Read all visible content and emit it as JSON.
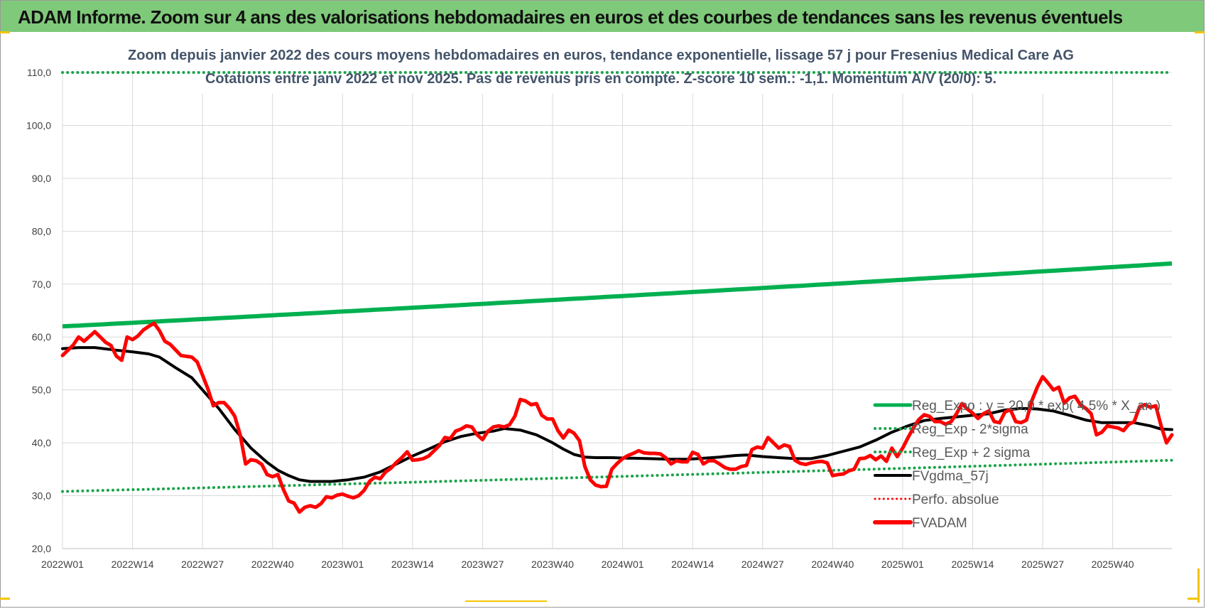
{
  "header": {
    "title": "ADAM Informe. Zoom sur 4 ans des valorisations hebdomadaires en euros et des courbes de tendances sans les revenus éventuels"
  },
  "colors": {
    "header_bg": "#7fc97a",
    "reg_expo": "#00b050",
    "reg_band": "#1aa34a",
    "fvgdma": "#000000",
    "perfo": "#ff0000",
    "fvadam": "#ff0000",
    "grid": "#d9d9d9",
    "title_text": "#44546a"
  },
  "chart_data": {
    "type": "line",
    "title": "Zoom depuis janvier 2022 des cours moyens hebdomadaires en euros, tendance exponentielle, lissage 57 j pour Fresenius Medical Care AG",
    "subtitle": "Cotations entre janv 2022 et nov 2025. Pas de revenus pris en compte. Z-score 10 sem.: -1,1. Momentum A/V (20/0): 5.",
    "ylim": [
      20,
      110
    ],
    "yticks": [
      "20,0",
      "30,0",
      "40,0",
      "50,0",
      "60,0",
      "70,0",
      "80,0",
      "90,0",
      "100,0",
      "110,0"
    ],
    "ytick_values": [
      20,
      30,
      40,
      50,
      60,
      70,
      80,
      90,
      100,
      110
    ],
    "xticks": [
      "2022W01",
      "2022W14",
      "2022W27",
      "2022W40",
      "2023W01",
      "2023W14",
      "2023W27",
      "2023W40",
      "2024W01",
      "2024W14",
      "2024W27",
      "2024W40",
      "2025W01",
      "2025W14",
      "2025W27",
      "2025W40"
    ],
    "xtick_index": [
      0,
      13,
      26,
      39,
      52,
      65,
      78,
      91,
      104,
      117,
      130,
      143,
      156,
      169,
      182,
      195
    ],
    "x_count": 206,
    "grid": true,
    "legend_position": "bottom-right",
    "series": [
      {
        "name": "Reg_Expo : y = 20,0 * exp( 4,5% * X_an )",
        "style": "solid-thick",
        "start": 62.0,
        "end": 73.9
      },
      {
        "name": "Reg_Exp - 2*sigma",
        "style": "dotted",
        "start": 30.8,
        "end": 36.7
      },
      {
        "name": "Reg_Exp + 2 sigma",
        "style": "dotted",
        "start": 110.0,
        "end": 110.0
      },
      {
        "name": "FVgdma_57j",
        "style": "solid",
        "points": [
          [
            0,
            57.8
          ],
          [
            3,
            58.0
          ],
          [
            6,
            58.0
          ],
          [
            10,
            57.5
          ],
          [
            13,
            57.2
          ],
          [
            16,
            56.8
          ],
          [
            18,
            56.2
          ],
          [
            21,
            54.2
          ],
          [
            24,
            52.3
          ],
          [
            26,
            50.0
          ],
          [
            29,
            46.5
          ],
          [
            32,
            42.5
          ],
          [
            35,
            39.0
          ],
          [
            38,
            36.3
          ],
          [
            40,
            34.8
          ],
          [
            42,
            33.8
          ],
          [
            44,
            33.0
          ],
          [
            46,
            32.7
          ],
          [
            50,
            32.7
          ],
          [
            53,
            33.0
          ],
          [
            56,
            33.5
          ],
          [
            59,
            34.5
          ],
          [
            62,
            36.0
          ],
          [
            65,
            37.5
          ],
          [
            68,
            38.8
          ],
          [
            71,
            40.2
          ],
          [
            74,
            41.2
          ],
          [
            77,
            41.8
          ],
          [
            80,
            42.2
          ],
          [
            82,
            42.7
          ],
          [
            85,
            42.4
          ],
          [
            88,
            41.5
          ],
          [
            91,
            40.0
          ],
          [
            93,
            38.8
          ],
          [
            95,
            37.8
          ],
          [
            97,
            37.3
          ],
          [
            99,
            37.2
          ],
          [
            102,
            37.2
          ],
          [
            105,
            37.1
          ],
          [
            109,
            37.0
          ],
          [
            113,
            36.9
          ],
          [
            116,
            36.9
          ],
          [
            118,
            37.0
          ],
          [
            122,
            37.3
          ],
          [
            125,
            37.6
          ],
          [
            127,
            37.7
          ],
          [
            130,
            37.4
          ],
          [
            133,
            37.2
          ],
          [
            136,
            37.0
          ],
          [
            139,
            37.0
          ],
          [
            142,
            37.6
          ],
          [
            145,
            38.4
          ],
          [
            148,
            39.2
          ],
          [
            151,
            40.5
          ],
          [
            154,
            42.0
          ],
          [
            157,
            43.2
          ],
          [
            160,
            44.2
          ],
          [
            163,
            44.6
          ],
          [
            166,
            44.9
          ],
          [
            169,
            45.2
          ],
          [
            172,
            45.5
          ],
          [
            175,
            46.2
          ],
          [
            178,
            46.5
          ],
          [
            181,
            46.4
          ],
          [
            184,
            46.0
          ],
          [
            187,
            45.2
          ],
          [
            190,
            44.3
          ],
          [
            193,
            43.8
          ],
          [
            196,
            43.8
          ],
          [
            199,
            43.8
          ],
          [
            202,
            43.2
          ],
          [
            204,
            42.6
          ],
          [
            206,
            42.5
          ]
        ]
      },
      {
        "name": "Perfo. absolue",
        "style": "dotted-red",
        "points": []
      },
      {
        "name": "FVADAM",
        "style": "solid-thick",
        "points": [
          [
            0,
            56.5
          ],
          [
            2,
            58.5
          ],
          [
            3,
            60.0
          ],
          [
            4,
            59.2
          ],
          [
            6,
            61.0
          ],
          [
            7,
            60.0
          ],
          [
            8,
            59.0
          ],
          [
            9,
            58.4
          ],
          [
            10,
            56.4
          ],
          [
            11,
            55.6
          ],
          [
            12,
            60.0
          ],
          [
            13,
            59.5
          ],
          [
            14,
            60.2
          ],
          [
            15,
            61.3
          ],
          [
            16,
            62.0
          ],
          [
            17,
            62.6
          ],
          [
            18,
            61.2
          ],
          [
            19,
            59.2
          ],
          [
            20,
            58.6
          ],
          [
            22,
            56.5
          ],
          [
            24,
            56.2
          ],
          [
            25,
            55.3
          ],
          [
            26,
            52.8
          ],
          [
            27,
            50.2
          ],
          [
            28,
            47.0
          ],
          [
            29,
            47.6
          ],
          [
            30,
            47.6
          ],
          [
            31,
            46.5
          ],
          [
            32,
            45.0
          ],
          [
            33,
            41.5
          ],
          [
            34,
            36.0
          ],
          [
            35,
            36.8
          ],
          [
            36,
            36.6
          ],
          [
            37,
            35.9
          ],
          [
            38,
            34.0
          ],
          [
            39,
            33.6
          ],
          [
            40,
            34.0
          ],
          [
            41,
            31.2
          ],
          [
            42,
            29.0
          ],
          [
            43,
            28.6
          ],
          [
            44,
            26.9
          ],
          [
            45,
            27.8
          ],
          [
            46,
            28.1
          ],
          [
            47,
            27.8
          ],
          [
            48,
            28.5
          ],
          [
            49,
            29.8
          ],
          [
            50,
            29.6
          ],
          [
            51,
            30.1
          ],
          [
            52,
            30.3
          ],
          [
            53,
            29.9
          ],
          [
            54,
            29.6
          ],
          [
            55,
            30.0
          ],
          [
            56,
            31.0
          ],
          [
            57,
            32.7
          ],
          [
            58,
            33.5
          ],
          [
            59,
            33.2
          ],
          [
            60,
            34.5
          ],
          [
            61,
            35.2
          ],
          [
            62,
            36.3
          ],
          [
            63,
            37.2
          ],
          [
            64,
            38.3
          ],
          [
            65,
            36.7
          ],
          [
            66,
            36.8
          ],
          [
            67,
            37.0
          ],
          [
            68,
            37.5
          ],
          [
            69,
            38.5
          ],
          [
            70,
            39.5
          ],
          [
            71,
            41.0
          ],
          [
            72,
            40.8
          ],
          [
            73,
            42.2
          ],
          [
            74,
            42.6
          ],
          [
            75,
            43.2
          ],
          [
            76,
            43.0
          ],
          [
            77,
            41.5
          ],
          [
            78,
            40.6
          ],
          [
            79,
            42.2
          ],
          [
            80,
            43.0
          ],
          [
            81,
            43.2
          ],
          [
            82,
            43.0
          ],
          [
            83,
            43.4
          ],
          [
            84,
            45.0
          ],
          [
            85,
            48.2
          ],
          [
            86,
            47.9
          ],
          [
            87,
            47.2
          ],
          [
            88,
            47.4
          ],
          [
            89,
            45.2
          ],
          [
            90,
            44.5
          ],
          [
            91,
            44.5
          ],
          [
            92,
            42.3
          ],
          [
            93,
            40.9
          ],
          [
            94,
            42.4
          ],
          [
            95,
            41.8
          ],
          [
            96,
            40.4
          ],
          [
            97,
            35.5
          ],
          [
            98,
            33.0
          ],
          [
            99,
            32.0
          ],
          [
            100,
            31.7
          ],
          [
            101,
            31.8
          ],
          [
            102,
            35.0
          ],
          [
            103,
            36.1
          ],
          [
            104,
            37.0
          ],
          [
            105,
            37.6
          ],
          [
            106,
            38.0
          ],
          [
            107,
            38.5
          ],
          [
            108,
            38.1
          ],
          [
            109,
            38.0
          ],
          [
            110,
            38.0
          ],
          [
            111,
            37.9
          ],
          [
            112,
            37.2
          ],
          [
            113,
            36.0
          ],
          [
            114,
            36.6
          ],
          [
            115,
            36.4
          ],
          [
            116,
            36.4
          ],
          [
            117,
            38.2
          ],
          [
            118,
            37.8
          ],
          [
            119,
            36.0
          ],
          [
            120,
            36.6
          ],
          [
            121,
            36.6
          ],
          [
            122,
            36.0
          ],
          [
            123,
            35.3
          ],
          [
            124,
            35.0
          ],
          [
            125,
            35.0
          ],
          [
            126,
            35.5
          ],
          [
            127,
            35.7
          ],
          [
            128,
            38.7
          ],
          [
            129,
            39.2
          ],
          [
            130,
            39.0
          ],
          [
            131,
            41.0
          ],
          [
            132,
            40.0
          ],
          [
            133,
            39.0
          ],
          [
            134,
            39.6
          ],
          [
            135,
            39.3
          ],
          [
            136,
            36.7
          ],
          [
            137,
            36.1
          ],
          [
            138,
            35.9
          ],
          [
            139,
            36.2
          ],
          [
            140,
            36.4
          ],
          [
            141,
            36.5
          ],
          [
            142,
            36.2
          ],
          [
            143,
            33.8
          ],
          [
            144,
            34.0
          ],
          [
            145,
            34.1
          ],
          [
            146,
            34.7
          ],
          [
            147,
            35.0
          ],
          [
            148,
            37.0
          ],
          [
            149,
            37.1
          ],
          [
            150,
            37.6
          ],
          [
            151,
            36.8
          ],
          [
            152,
            37.5
          ],
          [
            153,
            36.5
          ],
          [
            154,
            39.0
          ],
          [
            155,
            37.4
          ],
          [
            156,
            39.0
          ],
          [
            157,
            41.0
          ],
          [
            158,
            42.8
          ],
          [
            159,
            44.4
          ],
          [
            160,
            45.3
          ],
          [
            161,
            45.0
          ],
          [
            162,
            44.0
          ],
          [
            163,
            44.0
          ],
          [
            164,
            43.5
          ],
          [
            165,
            44.0
          ],
          [
            166,
            45.5
          ],
          [
            167,
            47.4
          ],
          [
            168,
            46.4
          ],
          [
            169,
            45.6
          ],
          [
            170,
            44.6
          ],
          [
            171,
            45.5
          ],
          [
            172,
            46.0
          ],
          [
            173,
            44.0
          ],
          [
            174,
            43.8
          ],
          [
            175,
            45.8
          ],
          [
            176,
            46.3
          ],
          [
            177,
            44.0
          ],
          [
            178,
            43.8
          ],
          [
            179,
            44.3
          ],
          [
            180,
            48.0
          ],
          [
            181,
            50.5
          ],
          [
            182,
            52.5
          ],
          [
            183,
            51.3
          ],
          [
            184,
            50.0
          ],
          [
            185,
            50.5
          ],
          [
            186,
            47.5
          ],
          [
            187,
            48.5
          ],
          [
            188,
            48.8
          ],
          [
            189,
            47.2
          ],
          [
            190,
            46.5
          ],
          [
            191,
            45.5
          ],
          [
            192,
            41.5
          ],
          [
            193,
            42.0
          ],
          [
            194,
            43.2
          ],
          [
            195,
            43.0
          ],
          [
            196,
            42.8
          ],
          [
            197,
            42.3
          ],
          [
            198,
            43.5
          ],
          [
            199,
            44.0
          ],
          [
            200,
            46.8
          ],
          [
            201,
            47.2
          ],
          [
            202,
            46.7
          ],
          [
            203,
            47.0
          ],
          [
            204,
            43.2
          ],
          [
            205,
            40.0
          ],
          [
            206,
            41.5
          ]
        ]
      }
    ]
  }
}
